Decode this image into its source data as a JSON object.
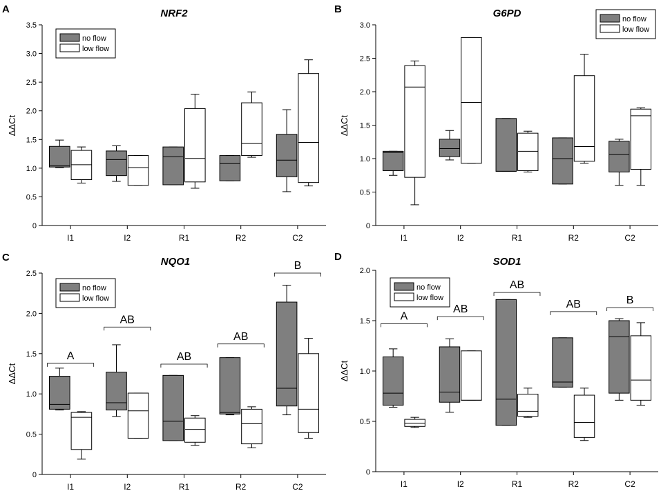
{
  "chart_data": [
    {
      "panel": "A",
      "title": "NRF2",
      "type": "box",
      "ylabel": "ΔΔCt",
      "xlabel": "",
      "ylim": [
        0,
        3.5
      ],
      "yticks": [
        "0",
        "0.5",
        "1.0",
        "1.5",
        "2.0",
        "2.5",
        "3.0",
        "3.5"
      ],
      "categories": [
        "I1",
        "I2",
        "R1",
        "R2",
        "C2"
      ],
      "legend": {
        "position": "top-left",
        "entries": [
          "no flow",
          "low flow"
        ]
      },
      "series": [
        {
          "name": "no flow",
          "color": "#7f7f7f",
          "boxes": [
            {
              "wlo": 1.01,
              "q1": 1.02,
              "med": 1.04,
              "q3": 1.38,
              "whi": 1.49
            },
            {
              "wlo": 0.77,
              "q1": 0.87,
              "med": 1.15,
              "q3": 1.3,
              "whi": 1.39
            },
            {
              "wlo": 0.71,
              "q1": 0.71,
              "med": 1.2,
              "q3": 1.37,
              "whi": 1.37
            },
            {
              "wlo": 0.78,
              "q1": 0.78,
              "med": 1.08,
              "q3": 1.22,
              "whi": 1.22
            },
            {
              "wlo": 0.59,
              "q1": 0.85,
              "med": 1.14,
              "q3": 1.59,
              "whi": 2.02
            }
          ]
        },
        {
          "name": "low flow",
          "color": "#ffffff",
          "boxes": [
            {
              "wlo": 0.74,
              "q1": 0.8,
              "med": 1.06,
              "q3": 1.31,
              "whi": 1.37
            },
            {
              "wlo": 0.7,
              "q1": 0.7,
              "med": 1.01,
              "q3": 1.22,
              "whi": 1.22
            },
            {
              "wlo": 0.65,
              "q1": 0.76,
              "med": 1.17,
              "q3": 2.04,
              "whi": 2.29
            },
            {
              "wlo": 1.19,
              "q1": 1.22,
              "med": 1.43,
              "q3": 2.14,
              "whi": 2.33
            },
            {
              "wlo": 0.69,
              "q1": 0.75,
              "med": 1.45,
              "q3": 2.65,
              "whi": 2.89
            }
          ]
        }
      ],
      "group_labels": []
    },
    {
      "panel": "B",
      "title": "G6PD",
      "type": "box",
      "ylabel": "ΔΔCt",
      "xlabel": "",
      "ylim": [
        0,
        3.0
      ],
      "yticks": [
        "0",
        "0.5",
        "1.0",
        "1.5",
        "2.0",
        "2.5",
        "3.0"
      ],
      "categories": [
        "I1",
        "I2",
        "R1",
        "R2",
        "C2"
      ],
      "legend": {
        "position": "top-right",
        "entries": [
          "no flow",
          "low flow"
        ]
      },
      "series": [
        {
          "name": "no flow",
          "color": "#7f7f7f",
          "boxes": [
            {
              "wlo": 0.75,
              "q1": 0.82,
              "med": 1.09,
              "q3": 1.11,
              "whi": 1.11
            },
            {
              "wlo": 0.98,
              "q1": 1.03,
              "med": 1.15,
              "q3": 1.29,
              "whi": 1.42
            },
            {
              "wlo": 0.81,
              "q1": 0.81,
              "med": 0.81,
              "q3": 1.6,
              "whi": 1.6
            },
            {
              "wlo": 0.62,
              "q1": 0.62,
              "med": 1.0,
              "q3": 1.31,
              "whi": 1.31
            },
            {
              "wlo": 0.6,
              "q1": 0.8,
              "med": 1.06,
              "q3": 1.26,
              "whi": 1.29
            }
          ]
        },
        {
          "name": "low flow",
          "color": "#ffffff",
          "boxes": [
            {
              "wlo": 0.31,
              "q1": 0.72,
              "med": 2.07,
              "q3": 2.39,
              "whi": 2.46
            },
            {
              "wlo": 0.93,
              "q1": 0.93,
              "med": 1.84,
              "q3": 2.81,
              "whi": 2.81
            },
            {
              "wlo": 0.8,
              "q1": 0.82,
              "med": 1.11,
              "q3": 1.38,
              "whi": 1.41
            },
            {
              "wlo": 0.93,
              "q1": 0.96,
              "med": 1.18,
              "q3": 2.24,
              "whi": 2.56
            },
            {
              "wlo": 0.6,
              "q1": 0.84,
              "med": 1.64,
              "q3": 1.74,
              "whi": 1.76
            }
          ]
        }
      ],
      "group_labels": []
    },
    {
      "panel": "C",
      "title": "NQO1",
      "type": "box",
      "ylabel": "ΔΔCt",
      "xlabel": "",
      "ylim": [
        0,
        2.5
      ],
      "yticks": [
        "0",
        "0.5",
        "1.0",
        "1.5",
        "2.0",
        "2.5"
      ],
      "categories": [
        "I1",
        "I2",
        "R1",
        "R2",
        "C2"
      ],
      "legend": {
        "position": "top-left",
        "entries": [
          "no flow",
          "low flow"
        ]
      },
      "series": [
        {
          "name": "no flow",
          "color": "#7f7f7f",
          "boxes": [
            {
              "wlo": 0.8,
              "q1": 0.81,
              "med": 0.87,
              "q3": 1.22,
              "whi": 1.32
            },
            {
              "wlo": 0.72,
              "q1": 0.8,
              "med": 0.89,
              "q3": 1.27,
              "whi": 1.61
            },
            {
              "wlo": 0.42,
              "q1": 0.42,
              "med": 0.66,
              "q3": 1.23,
              "whi": 1.23
            },
            {
              "wlo": 0.74,
              "q1": 0.75,
              "med": 0.77,
              "q3": 1.45,
              "whi": 1.45
            },
            {
              "wlo": 0.74,
              "q1": 0.85,
              "med": 1.07,
              "q3": 2.14,
              "whi": 2.35
            }
          ]
        },
        {
          "name": "low flow",
          "color": "#ffffff",
          "boxes": [
            {
              "wlo": 0.19,
              "q1": 0.31,
              "med": 0.71,
              "q3": 0.77,
              "whi": 0.78
            },
            {
              "wlo": 0.45,
              "q1": 0.45,
              "med": 0.79,
              "q3": 1.01,
              "whi": 1.01
            },
            {
              "wlo": 0.36,
              "q1": 0.4,
              "med": 0.56,
              "q3": 0.7,
              "whi": 0.73
            },
            {
              "wlo": 0.33,
              "q1": 0.38,
              "med": 0.63,
              "q3": 0.81,
              "whi": 0.84
            },
            {
              "wlo": 0.45,
              "q1": 0.52,
              "med": 0.81,
              "q3": 1.5,
              "whi": 1.69
            }
          ]
        }
      ],
      "group_labels": [
        {
          "text": "A",
          "y": 1.38
        },
        {
          "text": "AB",
          "y": 1.83
        },
        {
          "text": "AB",
          "y": 1.37
        },
        {
          "text": "AB",
          "y": 1.62
        },
        {
          "text": "B",
          "y": 2.5
        }
      ]
    },
    {
      "panel": "D",
      "title": "SOD1",
      "type": "box",
      "ylabel": "ΔΔCt",
      "xlabel": "",
      "ylim": [
        0,
        2.0
      ],
      "yticks": [
        "0",
        "0.5",
        "1.0",
        "1.5",
        "2.0"
      ],
      "categories": [
        "I1",
        "I2",
        "R1",
        "R2",
        "C2"
      ],
      "legend": {
        "position": "top-left",
        "entries": [
          "no flow",
          "low flow"
        ]
      },
      "series": [
        {
          "name": "no flow",
          "color": "#7f7f7f",
          "boxes": [
            {
              "wlo": 0.64,
              "q1": 0.66,
              "med": 0.78,
              "q3": 1.14,
              "whi": 1.22
            },
            {
              "wlo": 0.59,
              "q1": 0.69,
              "med": 0.79,
              "q3": 1.24,
              "whi": 1.32
            },
            {
              "wlo": 0.46,
              "q1": 0.46,
              "med": 0.72,
              "q3": 1.71,
              "whi": 1.71
            },
            {
              "wlo": 0.84,
              "q1": 0.84,
              "med": 0.89,
              "q3": 1.33,
              "whi": 1.33
            },
            {
              "wlo": 0.71,
              "q1": 0.78,
              "med": 1.34,
              "q3": 1.5,
              "whi": 1.52
            }
          ]
        },
        {
          "name": "low flow",
          "color": "#ffffff",
          "boxes": [
            {
              "wlo": 0.44,
              "q1": 0.45,
              "med": 0.48,
              "q3": 0.52,
              "whi": 0.54
            },
            {
              "wlo": 0.71,
              "q1": 0.71,
              "med": 0.71,
              "q3": 1.2,
              "whi": 1.2
            },
            {
              "wlo": 0.54,
              "q1": 0.55,
              "med": 0.6,
              "q3": 0.77,
              "whi": 0.83
            },
            {
              "wlo": 0.31,
              "q1": 0.34,
              "med": 0.49,
              "q3": 0.76,
              "whi": 0.83
            },
            {
              "wlo": 0.66,
              "q1": 0.71,
              "med": 0.91,
              "q3": 1.35,
              "whi": 1.48
            }
          ]
        }
      ],
      "group_labels": [
        {
          "text": "A",
          "y": 1.47
        },
        {
          "text": "AB",
          "y": 1.54
        },
        {
          "text": "AB",
          "y": 1.78
        },
        {
          "text": "AB",
          "y": 1.59
        },
        {
          "text": "B",
          "y": 1.63
        }
      ]
    }
  ]
}
